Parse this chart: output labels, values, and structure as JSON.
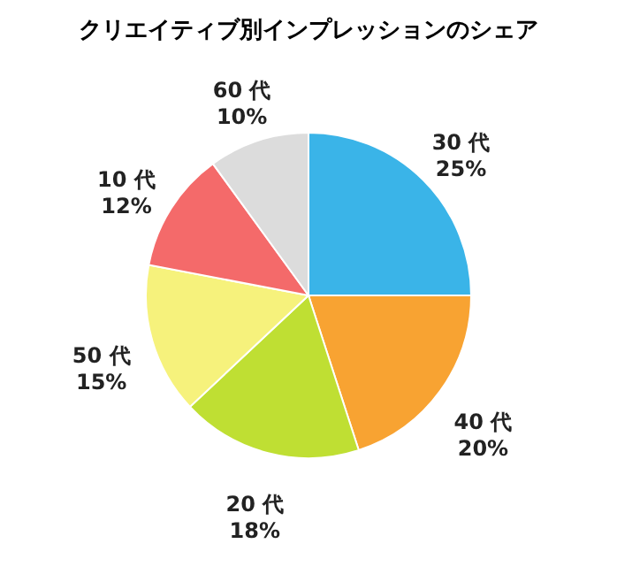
{
  "chart_data": {
    "type": "pie",
    "title": "クリエイティブ別インプレッションのシェア",
    "categories": [
      "30 代",
      "40 代",
      "20 代",
      "50 代",
      "10 代",
      "60 代"
    ],
    "values": [
      25,
      20,
      18,
      15,
      12,
      10
    ],
    "value_labels": [
      "25%",
      "20%",
      "18%",
      "15%",
      "12%",
      "10%"
    ],
    "colors": [
      "#3ab4e8",
      "#f8a332",
      "#bfdf33",
      "#f6f27c",
      "#f46a6a",
      "#dcdcdc"
    ],
    "legend": false
  }
}
